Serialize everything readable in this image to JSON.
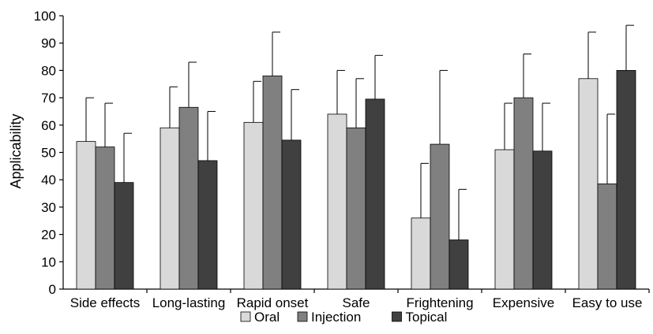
{
  "chart_data": {
    "type": "bar",
    "ylabel": "Applicability",
    "ylim": [
      0,
      100
    ],
    "yticks": [
      0,
      10,
      20,
      30,
      40,
      50,
      60,
      70,
      80,
      90,
      100
    ],
    "categories": [
      "Side effects",
      "Long-lasting",
      "Rapid onset",
      "Safe",
      "Frightening",
      "Expensive",
      "Easy to use"
    ],
    "series": [
      {
        "name": "Oral",
        "color": "#d9d9d9",
        "values": [
          54,
          59,
          61,
          64,
          26,
          51,
          77
        ],
        "error_upper": [
          70,
          74,
          76,
          80,
          46,
          68,
          94
        ]
      },
      {
        "name": "Injection",
        "color": "#808080",
        "values": [
          52,
          66.5,
          78,
          59,
          53,
          70,
          38.5
        ],
        "error_upper": [
          68,
          83,
          94,
          77,
          80,
          86,
          64
        ]
      },
      {
        "name": "Topical",
        "color": "#404040",
        "values": [
          39,
          47,
          54.5,
          69.5,
          18,
          50.5,
          80
        ],
        "error_upper": [
          57,
          65,
          73,
          85.5,
          36.5,
          68,
          96.5
        ]
      }
    ],
    "legend_position": "bottom",
    "grid": false
  }
}
